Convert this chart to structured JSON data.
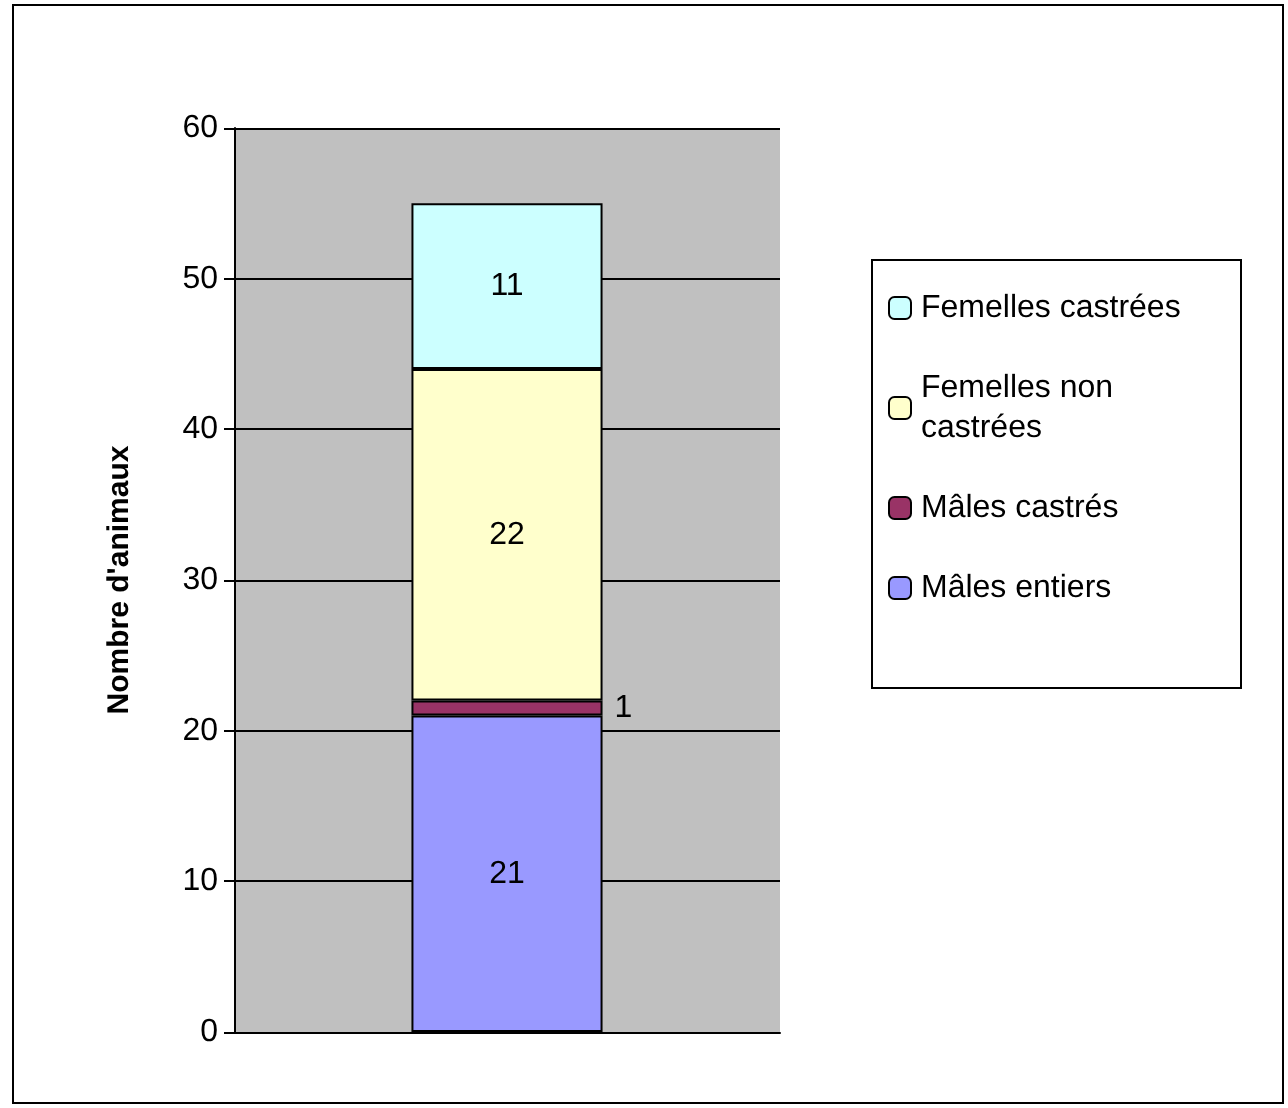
{
  "chart_data": {
    "type": "bar",
    "stacked": true,
    "ylabel": "Nombre d'animaux",
    "categories": [
      null
    ],
    "ylim": [
      0,
      60
    ],
    "yticks": [
      0,
      10,
      20,
      30,
      40,
      50,
      60
    ],
    "grid": "y",
    "legend": "right",
    "data_labels": true,
    "series": [
      {
        "name": "Mâles entiers",
        "color": "#9999ff",
        "values": [
          21
        ]
      },
      {
        "name": "Mâles castrés",
        "color": "#993366",
        "values": [
          1
        ]
      },
      {
        "name": "Femelles non castrées",
        "color": "#ffffcc",
        "values": [
          22
        ]
      },
      {
        "name": "Femelles castrées",
        "color": "#ccffff",
        "values": [
          11
        ]
      }
    ]
  }
}
